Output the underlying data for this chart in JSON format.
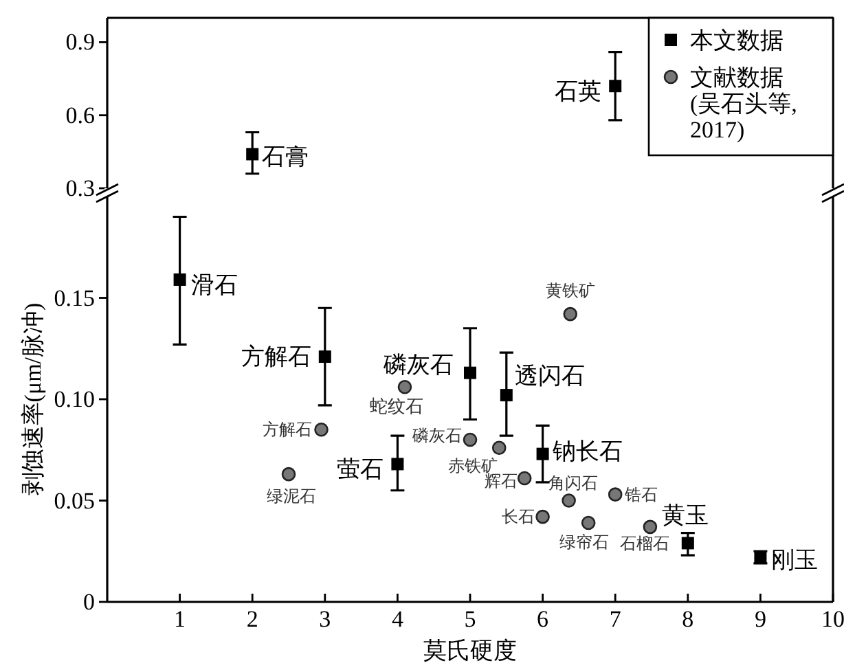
{
  "chart_data": [
    {
      "type": "scatter",
      "xlim": [
        0,
        10
      ],
      "ylim": [
        0.3,
        1.0
      ],
      "yticks": [
        {
          "value": 0.3,
          "label": "0.3"
        },
        {
          "value": 0.6,
          "label": "0.6"
        },
        {
          "value": 0.9,
          "label": "0.9"
        }
      ],
      "tick_labels": "y",
      "series": [
        {
          "color": "#000000",
          "marker": "square",
          "x": [
            2,
            7
          ],
          "values": [
            0.44,
            0.72
          ],
          "errors": [
            [
              0.36,
              0.53
            ],
            [
              0.58,
              0.86
            ]
          ]
        }
      ],
      "annotations": [
        {
          "text": "石膏",
          "x": 2,
          "y": 0.44
        },
        {
          "text": "石英",
          "x": 7,
          "y": 0.72
        }
      ]
    },
    {
      "type": "scatter",
      "xlim": [
        0,
        10
      ],
      "xticks": [
        1,
        2,
        3,
        4,
        5,
        6,
        7,
        8,
        9,
        10
      ],
      "ylim": [
        0,
        0.2
      ],
      "yticks": [
        0,
        {
          "value": 0.05,
          "label": "0.05"
        },
        {
          "value": 0.1,
          "label": "0.10"
        },
        {
          "value": 0.15,
          "label": "0.15"
        }
      ],
      "xlabel": "莫氏硬度",
      "ylabel": "剥蚀速率(μm/脉冲)",
      "legend": "top right",
      "series": [
        {
          "name": "本文数据",
          "color": "#000000",
          "marker": "square",
          "x": [
            1,
            3,
            4,
            5,
            5.5,
            6,
            8,
            9
          ],
          "values": [
            0.159,
            0.121,
            0.068,
            0.113,
            0.102,
            0.073,
            0.029,
            0.022
          ],
          "errors": [
            [
              0.127,
              0.19
            ],
            [
              0.097,
              0.145
            ],
            [
              0.055,
              0.082
            ],
            [
              0.09,
              0.135
            ],
            [
              0.082,
              0.123
            ],
            [
              0.059,
              0.087
            ],
            [
              0.023,
              0.034
            ],
            [
              0.019,
              0.025
            ]
          ]
        },
        {
          "name": "文献数据(吴石头等, 2017)",
          "color": "#777777",
          "marker": "circle",
          "x": [
            2.5,
            2.95,
            4.1,
            5,
            5.4,
            5.75,
            6,
            6.36,
            6.63,
            7,
            7.48,
            6.38
          ],
          "values": [
            0.063,
            0.085,
            0.106,
            0.08,
            0.076,
            0.061,
            0.042,
            0.05,
            0.039,
            0.053,
            0.037,
            0.142
          ]
        }
      ],
      "annotations": [
        {
          "text": "滑石",
          "x": 1,
          "y": 0.159
        },
        {
          "text": "方解石",
          "x": 3,
          "y": 0.121
        },
        {
          "text": "萤石",
          "x": 4,
          "y": 0.068
        },
        {
          "text": "磷灰石",
          "x": 5,
          "y": 0.113
        },
        {
          "text": "透闪石",
          "x": 5.5,
          "y": 0.102
        },
        {
          "text": "钠长石",
          "x": 6,
          "y": 0.073
        },
        {
          "text": "黄玉",
          "x": 8,
          "y": 0.029
        },
        {
          "text": "刚玉",
          "x": 9,
          "y": 0.022
        },
        {
          "text": "黄铁矿",
          "x": 6.38,
          "y": 0.142
        },
        {
          "text": "蛇纹石",
          "x": 4.1,
          "y": 0.106
        },
        {
          "text": "方解石",
          "x": 2.95,
          "y": 0.085
        },
        {
          "text": "绿泥石",
          "x": 2.5,
          "y": 0.063
        },
        {
          "text": "磷灰石",
          "x": 5,
          "y": 0.08
        },
        {
          "text": "赤铁矿",
          "x": 5.4,
          "y": 0.076
        },
        {
          "text": "辉石",
          "x": 5.75,
          "y": 0.061
        },
        {
          "text": "长石",
          "x": 6,
          "y": 0.042
        },
        {
          "text": "角闪石",
          "x": 6.36,
          "y": 0.05
        },
        {
          "text": "绿帘石",
          "x": 6.63,
          "y": 0.039
        },
        {
          "text": "锆石",
          "x": 7,
          "y": 0.053
        },
        {
          "text": "石榴石",
          "x": 7.48,
          "y": 0.037
        }
      ]
    }
  ]
}
